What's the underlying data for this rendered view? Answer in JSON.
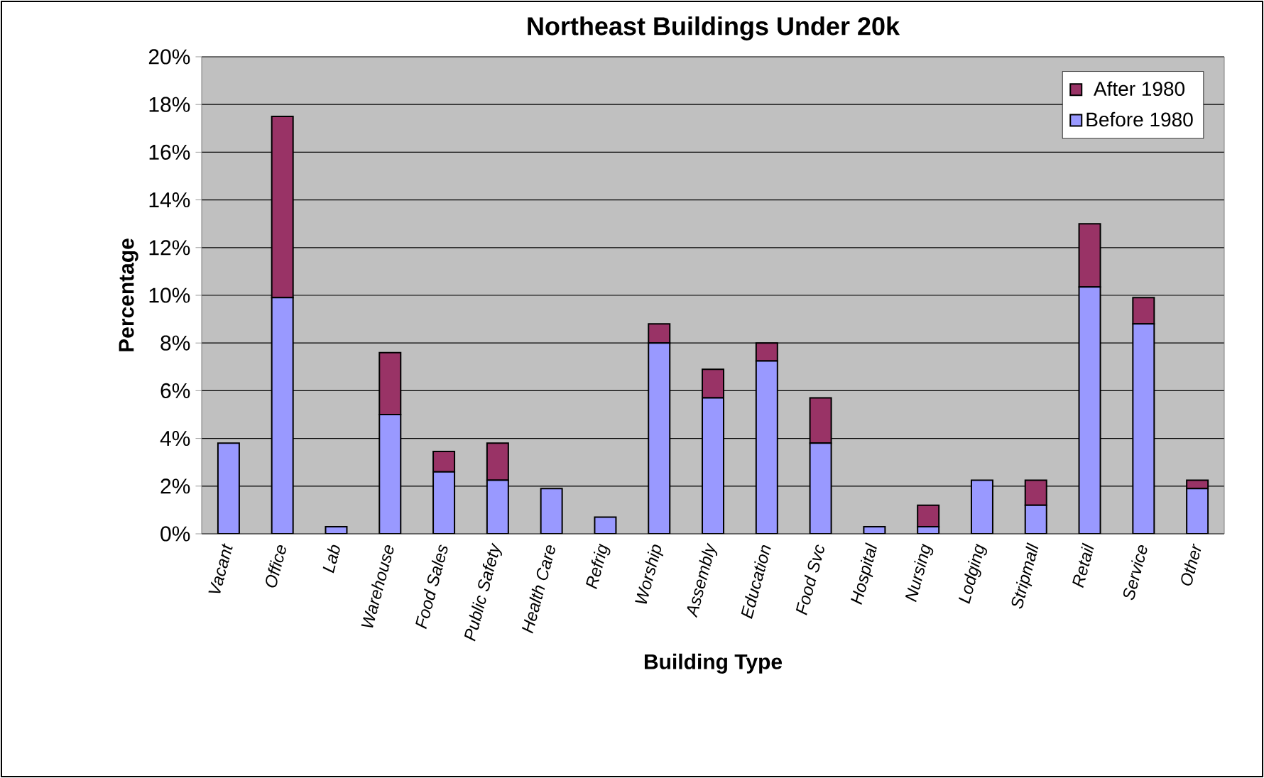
{
  "chart_data": {
    "type": "bar",
    "title": "Northeast Buildings Under 20k",
    "xlabel": "Building Type",
    "ylabel": "Percentage",
    "categories": [
      "Vacant",
      "Office",
      "Lab",
      "Warehouse",
      "Food Sales",
      "Public Safety",
      "Health Care",
      "Refrig",
      "Worship",
      "Assembly",
      "Education",
      "Food Svc",
      "Hospital",
      "Nursing",
      "Lodging",
      "Stripmall",
      "Retail",
      "Service",
      "Other"
    ],
    "series": [
      {
        "name": "Before 1980",
        "color": "#9999ff",
        "values": [
          3.8,
          9.9,
          0.3,
          5.0,
          2.6,
          2.25,
          1.9,
          0.7,
          8.0,
          5.7,
          7.25,
          3.8,
          0.3,
          0.3,
          2.25,
          1.2,
          10.35,
          8.8,
          1.9
        ]
      },
      {
        "name": "After 1980",
        "color": "#993366",
        "values": [
          0,
          7.6,
          0,
          2.6,
          0.85,
          1.55,
          0,
          0,
          0.8,
          1.2,
          0.75,
          1.9,
          0,
          0.9,
          0,
          1.05,
          2.65,
          1.1,
          0.35
        ]
      }
    ],
    "stacked": true,
    "ylim": [
      0,
      20
    ],
    "yticks": [
      {
        "value": 0,
        "label": "0%"
      },
      {
        "value": 2,
        "label": "2%"
      },
      {
        "value": 4,
        "label": "4%"
      },
      {
        "value": 6,
        "label": "6%"
      },
      {
        "value": 8,
        "label": "8%"
      },
      {
        "value": 10,
        "label": "10%"
      },
      {
        "value": 12,
        "label": "12%"
      },
      {
        "value": 14,
        "label": "14%"
      },
      {
        "value": 16,
        "label": "16%"
      },
      {
        "value": 18,
        "label": "18%"
      },
      {
        "value": 20,
        "label": "20%"
      }
    ],
    "grid": "y",
    "legend": "top right"
  }
}
